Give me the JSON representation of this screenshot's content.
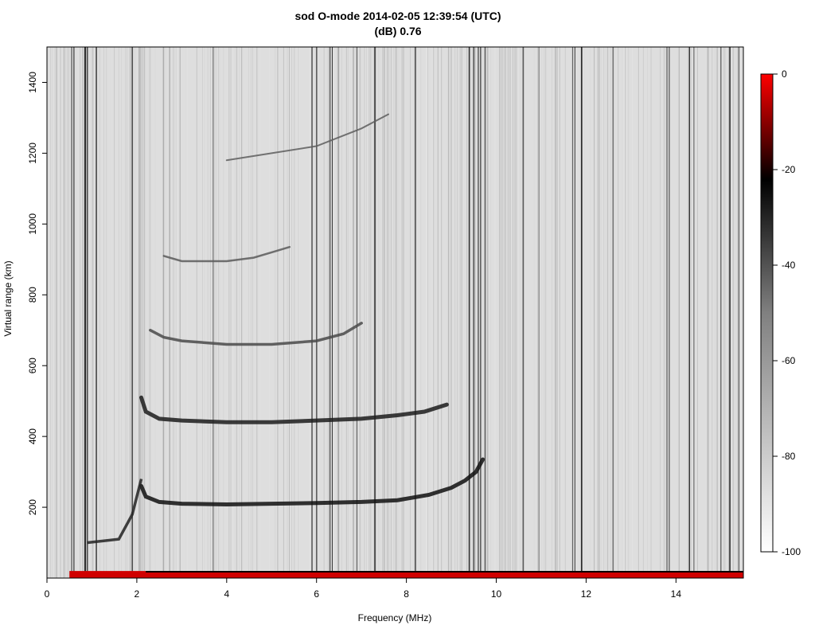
{
  "chart_data": {
    "type": "heatmap",
    "title": "sod O-mode 2014-02-05 12:39:54 (UTC)",
    "subtitle": "(dB) 0.76",
    "xlabel": "Frequency (MHz)",
    "ylabel": "Virtual range (km)",
    "xlim": [
      0,
      15.5
    ],
    "ylim": [
      0,
      1500
    ],
    "xticks": [
      "0",
      "2",
      "4",
      "6",
      "8",
      "10",
      "12",
      "14"
    ],
    "yticks": [
      "200",
      "400",
      "600",
      "800",
      "1000",
      "1200",
      "1400"
    ],
    "colorbar": {
      "min": -100,
      "max": 0,
      "ticks": [
        "0",
        "-20",
        "-40",
        "-60",
        "-80",
        "-100"
      ],
      "colors": [
        "#ffffff",
        "#bfbfbf",
        "#808080",
        "#000000",
        "#ff0000"
      ]
    },
    "traces": [
      {
        "x": [
          2.1,
          2.2,
          2.5,
          3.0,
          4.0,
          5.0,
          6.0,
          7.0,
          7.8,
          8.5,
          9.0,
          9.3,
          9.55,
          9.7
        ],
        "y": [
          260,
          230,
          215,
          210,
          208,
          210,
          212,
          215,
          220,
          235,
          255,
          275,
          300,
          335
        ]
      },
      {
        "x": [
          2.1,
          2.2,
          2.5,
          3.0,
          4.0,
          5.0,
          6.0,
          7.0,
          7.8,
          8.4,
          8.9
        ],
        "y": [
          510,
          470,
          450,
          445,
          440,
          440,
          445,
          450,
          460,
          470,
          490
        ]
      },
      {
        "x": [
          2.3,
          2.6,
          3.0,
          4.0,
          5.0,
          6.0,
          6.6,
          7.0
        ],
        "y": [
          700,
          680,
          670,
          660,
          660,
          670,
          690,
          720
        ]
      },
      {
        "x": [
          2.6,
          3.0,
          4.0,
          4.6,
          5.0,
          5.4
        ],
        "y": [
          910,
          895,
          895,
          905,
          920,
          935
        ]
      },
      {
        "x": [
          4.0,
          5.0,
          6.0,
          6.5,
          7.0,
          7.6
        ],
        "y": [
          1180,
          1200,
          1220,
          1245,
          1270,
          1310
        ]
      }
    ]
  }
}
